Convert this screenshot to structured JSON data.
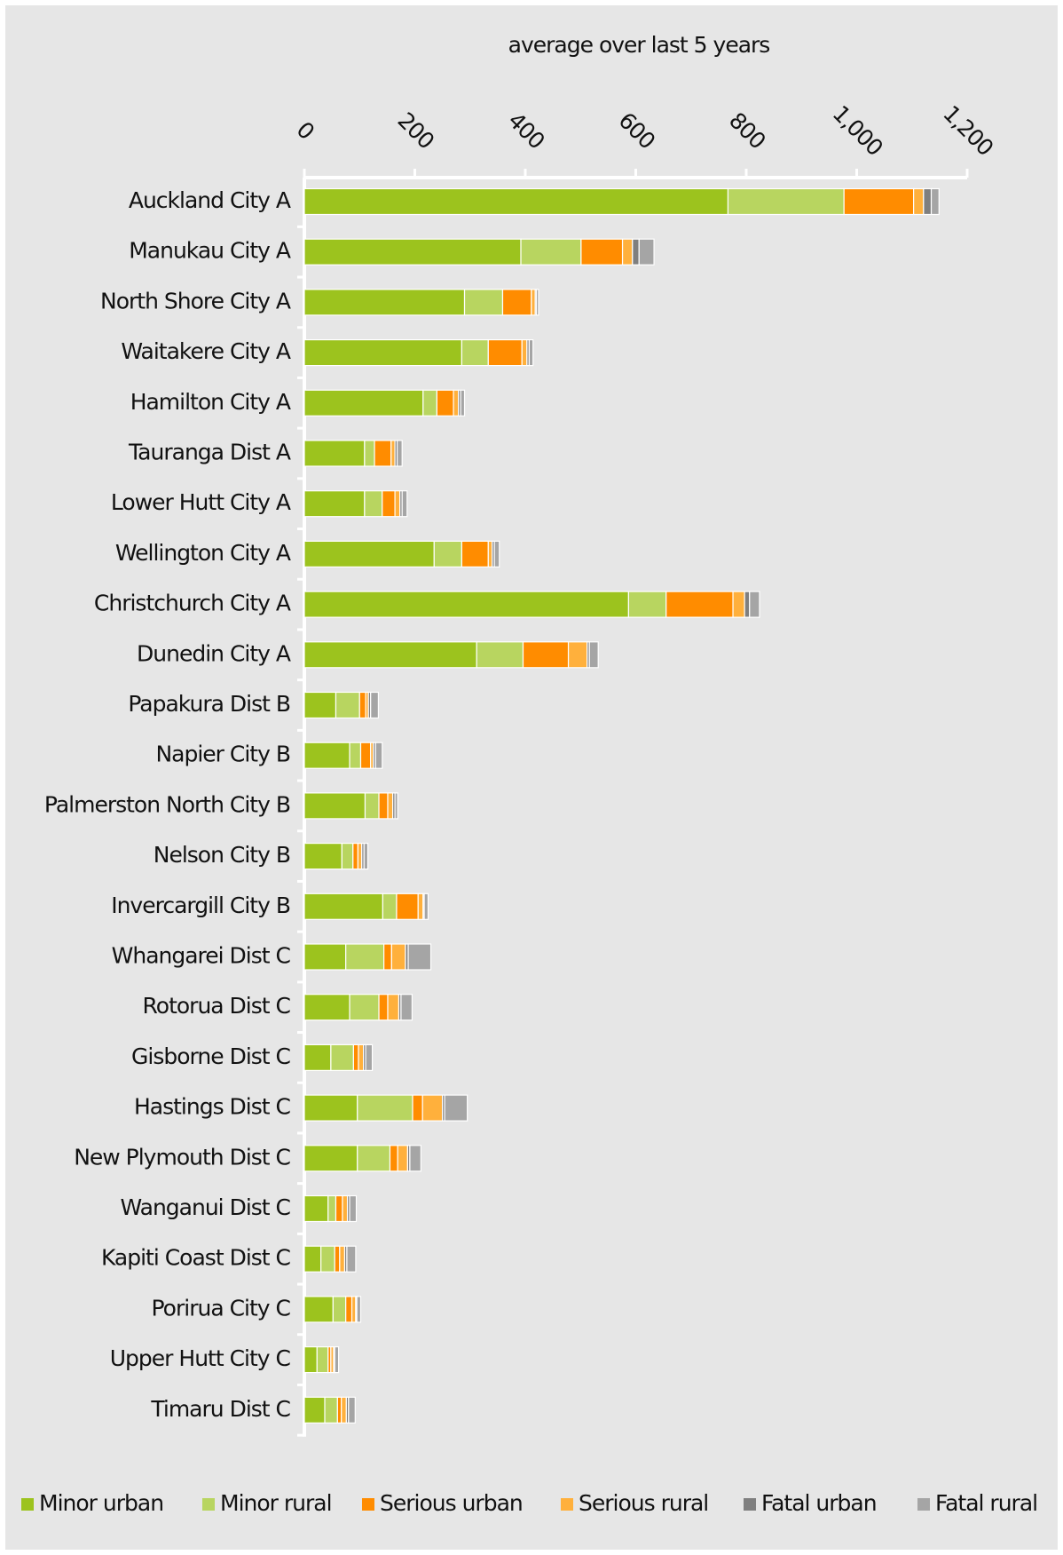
{
  "chart_data": {
    "type": "stacked_bar_horizontal",
    "x_label": "average over last 5 years",
    "categories": [
      "Auckland City A",
      "Manukau City A",
      "North Shore City A",
      "Waitakere City A",
      "Hamilton City A",
      "Tauranga Dist A",
      "Lower Hutt City A",
      "Wellington City A",
      "Christchurch City A",
      "Dunedin City A",
      "Papakura Dist B",
      "Napier City B",
      "Palmerston North City B",
      "Nelson City B",
      "Invercargill City B",
      "Whangarei Dist C",
      "Rotorua Dist C",
      "Gisborne Dist C",
      "Hastings Dist C",
      "New Plymouth Dist C",
      "Wanganui Dist C",
      "Kapiti Coast Dist C",
      "Porirua City C",
      "Upper Hutt City C",
      "Timaru Dist C"
    ],
    "series": [
      {
        "name": "Minor urban",
        "color": "#9cc31e",
        "values": [
          767,
          392,
          290,
          285,
          215,
          109,
          109,
          235,
          587,
          312,
          57,
          82,
          110,
          68,
          142,
          75,
          82,
          48,
          96,
          96,
          43,
          30,
          52,
          23,
          37
        ]
      },
      {
        "name": "Minor rural",
        "color": "#b8d560",
        "values": [
          210,
          109,
          69,
          48,
          25,
          18,
          32,
          50,
          68,
          84,
          43,
          20,
          25,
          20,
          25,
          69,
          53,
          41,
          100,
          59,
          14,
          25,
          23,
          20,
          23
        ]
      },
      {
        "name": "Serious urban",
        "color": "#ff8c00",
        "values": [
          126,
          75,
          52,
          61,
          30,
          30,
          23,
          48,
          121,
          82,
          11,
          18,
          16,
          9,
          39,
          14,
          16,
          9,
          18,
          14,
          12,
          9,
          11,
          5,
          7
        ]
      },
      {
        "name": "Serious rural",
        "color": "#ffb03c",
        "values": [
          18,
          18,
          7,
          9,
          9,
          7,
          9,
          7,
          21,
          34,
          5,
          5,
          9,
          7,
          9,
          25,
          20,
          9,
          36,
          18,
          9,
          9,
          7,
          5,
          9
        ]
      },
      {
        "name": "Fatal urban",
        "color": "#7f7f7f",
        "values": [
          14,
          12,
          2,
          4,
          4,
          4,
          4,
          4,
          9,
          4,
          4,
          4,
          4,
          4,
          2,
          5,
          4,
          4,
          4,
          4,
          4,
          4,
          2,
          2,
          4
        ]
      },
      {
        "name": "Fatal rural",
        "color": "#a5a5a5",
        "values": [
          14,
          27,
          4,
          7,
          7,
          9,
          9,
          9,
          18,
          16,
          14,
          12,
          5,
          7,
          7,
          41,
          20,
          12,
          41,
          20,
          12,
          16,
          7,
          7,
          12
        ]
      }
    ],
    "xlim": [
      0,
      1200
    ],
    "xticks": [
      0,
      200,
      400,
      600,
      800,
      {
        "value": 1000,
        "label": "1,000"
      },
      {
        "value": 1200,
        "label": "1,200"
      }
    ],
    "grid": false
  }
}
